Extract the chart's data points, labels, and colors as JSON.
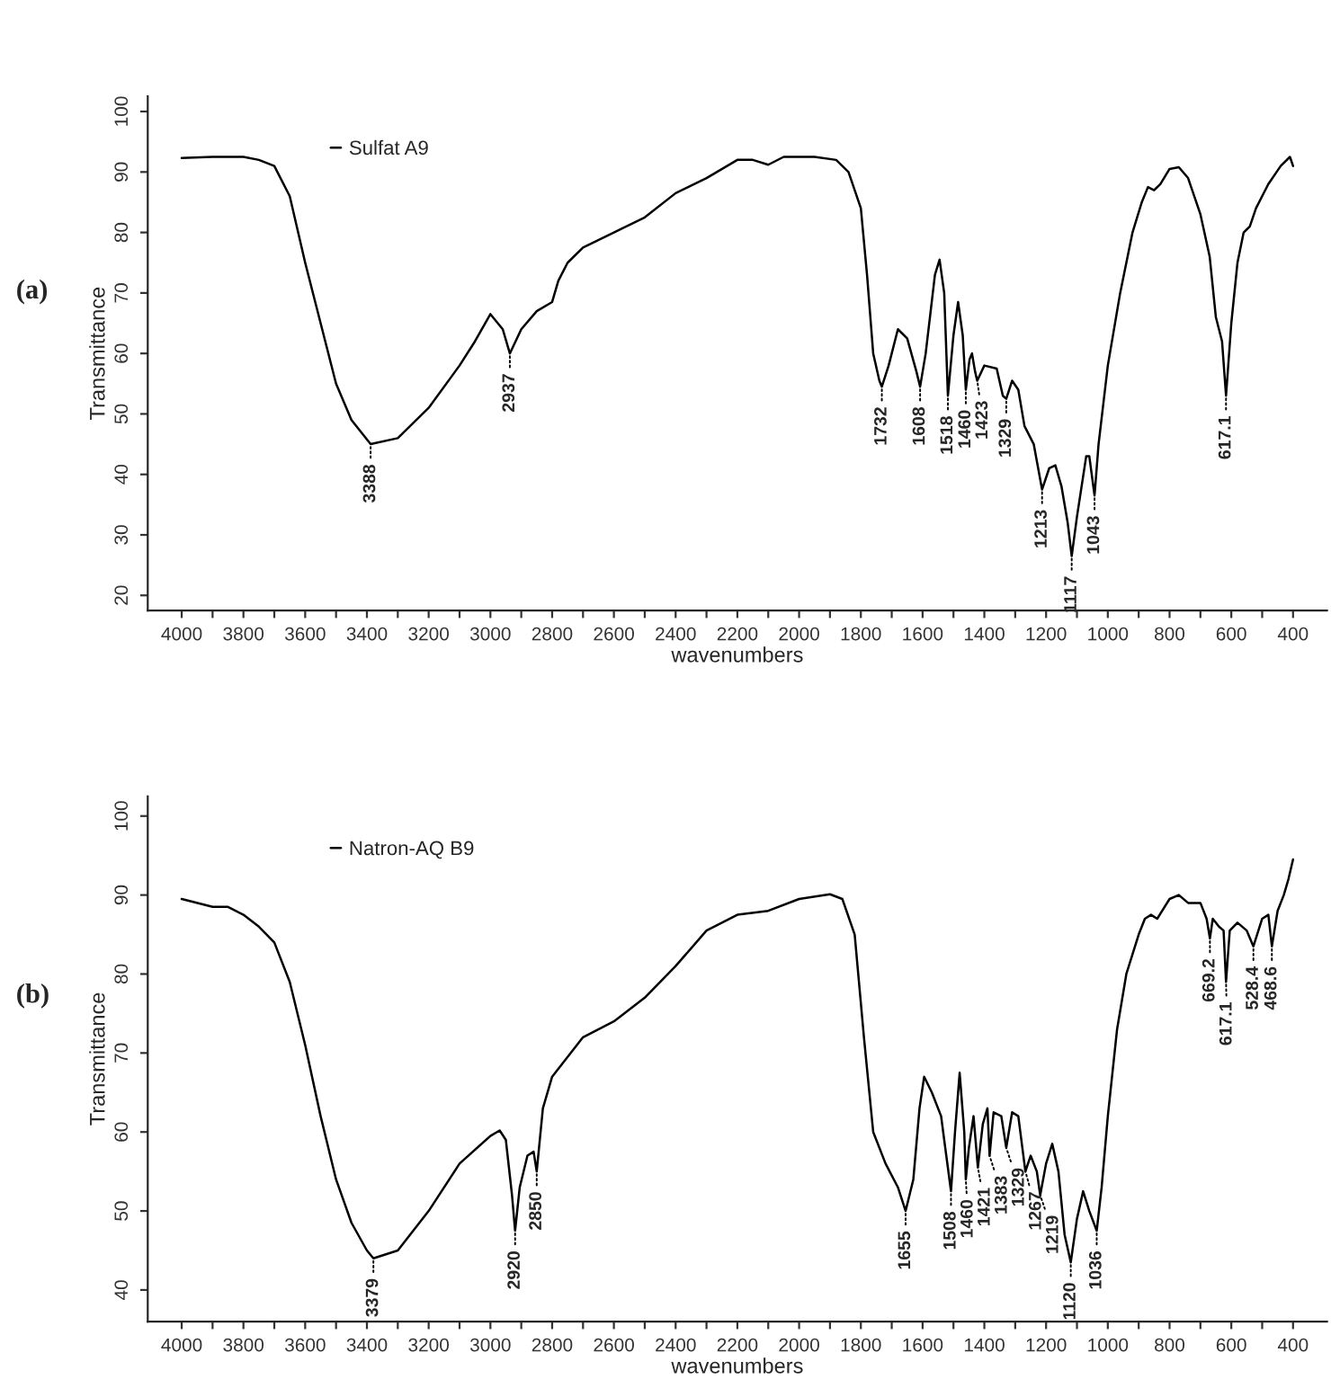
{
  "chart_data": [
    {
      "type": "line",
      "xlabel": "wavenumbers",
      "ylabel": "Transmittance",
      "xlim": [
        4110,
        290
      ],
      "ylim": [
        17.5,
        102.5
      ],
      "xticks": [
        4000,
        {
          "value": 3900,
          "label": null
        },
        3800,
        {
          "value": 3700,
          "label": null
        },
        3600,
        {
          "value": 3500,
          "label": null
        },
        3400,
        {
          "value": 3300,
          "label": null
        },
        3200,
        {
          "value": 3100,
          "label": null
        },
        3000,
        {
          "value": 2900,
          "label": null
        },
        2800,
        {
          "value": 2700,
          "label": null
        },
        2600,
        {
          "value": 2500,
          "label": null
        },
        2400,
        {
          "value": 2300,
          "label": null
        },
        2200,
        {
          "value": 2100,
          "label": null
        },
        2000,
        {
          "value": 1900,
          "label": null
        },
        1800,
        {
          "value": 1700,
          "label": null
        },
        1600,
        {
          "value": 1500,
          "label": null
        },
        1400,
        {
          "value": 1300,
          "label": null
        },
        1200,
        {
          "value": 1100,
          "label": null
        },
        1000,
        {
          "value": 900,
          "label": null
        },
        800,
        {
          "value": 700,
          "label": null
        },
        600,
        {
          "value": 500,
          "label": null
        },
        400
      ],
      "yticks": [
        20,
        30,
        40,
        50,
        60,
        70,
        80,
        90,
        100
      ],
      "grid": false,
      "legend": "top left",
      "marker": "none",
      "line_style": "solid",
      "series": [
        {
          "name": "Sulfat A9",
          "color": "#000000",
          "x": [
            4000,
            3900,
            3800,
            3750,
            3700,
            3650,
            3600,
            3550,
            3500,
            3450,
            3388,
            3300,
            3200,
            3100,
            3050,
            3000,
            2960,
            2937,
            2900,
            2850,
            2800,
            2780,
            2750,
            2700,
            2600,
            2500,
            2400,
            2300,
            2200,
            2150,
            2100,
            2050,
            1950,
            1880,
            1840,
            1800,
            1780,
            1760,
            1740,
            1732,
            1710,
            1680,
            1650,
            1620,
            1608,
            1590,
            1560,
            1545,
            1530,
            1518,
            1500,
            1485,
            1470,
            1460,
            1448,
            1440,
            1430,
            1423,
            1400,
            1360,
            1340,
            1329,
            1310,
            1290,
            1270,
            1240,
            1213,
            1190,
            1170,
            1150,
            1130,
            1117,
            1100,
            1070,
            1060,
            1043,
            1030,
            1000,
            960,
            920,
            890,
            870,
            850,
            830,
            800,
            770,
            740,
            700,
            670,
            650,
            630,
            617.1,
            600,
            580,
            560,
            540,
            520,
            480,
            440,
            410,
            400
          ],
          "values": [
            92.3,
            92.5,
            92.5,
            92,
            91,
            86,
            75,
            65,
            55,
            49,
            45,
            46,
            51,
            58,
            62,
            66.5,
            64,
            60,
            64,
            67,
            68.5,
            72,
            75,
            77.5,
            80,
            82.5,
            86.5,
            89,
            92,
            92,
            91.2,
            92.5,
            92.5,
            92,
            90,
            84,
            73,
            60,
            55.5,
            54.5,
            58,
            64,
            62.5,
            57,
            54.5,
            60,
            73,
            75.5,
            70,
            53,
            63,
            68.5,
            63,
            54,
            59,
            60,
            57,
            55.5,
            58,
            57.5,
            53,
            52.5,
            55.5,
            54,
            48,
            45,
            37.5,
            41,
            41.5,
            38,
            32,
            26.5,
            33,
            43,
            43,
            36.5,
            45,
            58,
            70,
            80,
            85,
            87.5,
            87,
            88,
            90.5,
            90.8,
            89,
            83,
            76,
            66,
            62,
            53,
            65,
            75,
            80,
            81,
            84,
            88,
            91,
            92.5,
            91
          ]
        }
      ],
      "annotations": [
        "(a)",
        {
          "text": "3388",
          "x": 3388,
          "y": 45
        },
        {
          "text": "2937",
          "x": 2937,
          "y": 60
        },
        {
          "text": "1732",
          "x": 1732,
          "y": 54.5
        },
        {
          "text": "1608",
          "x": 1608,
          "y": 54.5
        },
        {
          "text": "1518",
          "x": 1518,
          "y": 53
        },
        {
          "text": "1460",
          "x": 1460,
          "y": 54
        },
        {
          "text": "1423",
          "x": 1423,
          "y": 55.5
        },
        {
          "text": "1329",
          "x": 1329,
          "y": 52.5
        },
        {
          "text": "1213",
          "x": 1213,
          "y": 37.5
        },
        {
          "text": "1117",
          "x": 1117,
          "y": 26.5
        },
        {
          "text": "1043",
          "x": 1043,
          "y": 36.5
        },
        {
          "text": "617.1",
          "x": 617.1,
          "y": 53
        }
      ]
    },
    {
      "type": "line",
      "xlabel": "wavenumbers",
      "ylabel": "Transmittance",
      "xlim": [
        4110,
        290
      ],
      "ylim": [
        36,
        102.5
      ],
      "xticks": [
        4000,
        {
          "value": 3900,
          "label": null
        },
        3800,
        {
          "value": 3700,
          "label": null
        },
        3600,
        {
          "value": 3500,
          "label": null
        },
        3400,
        {
          "value": 3300,
          "label": null
        },
        3200,
        {
          "value": 3100,
          "label": null
        },
        3000,
        {
          "value": 2900,
          "label": null
        },
        2800,
        {
          "value": 2700,
          "label": null
        },
        2600,
        {
          "value": 2500,
          "label": null
        },
        2400,
        {
          "value": 2300,
          "label": null
        },
        2200,
        {
          "value": 2100,
          "label": null
        },
        2000,
        {
          "value": 1900,
          "label": null
        },
        1800,
        {
          "value": 1700,
          "label": null
        },
        1600,
        {
          "value": 1500,
          "label": null
        },
        1400,
        {
          "value": 1300,
          "label": null
        },
        1200,
        {
          "value": 1100,
          "label": null
        },
        1000,
        {
          "value": 900,
          "label": null
        },
        800,
        {
          "value": 700,
          "label": null
        },
        600,
        {
          "value": 500,
          "label": null
        },
        400
      ],
      "yticks": [
        40,
        50,
        60,
        70,
        80,
        90,
        100
      ],
      "grid": false,
      "legend": "top left",
      "marker": "none",
      "line_style": "solid",
      "series": [
        {
          "name": "Natron-AQ B9",
          "color": "#000000",
          "x": [
            4000,
            3900,
            3850,
            3800,
            3750,
            3700,
            3650,
            3600,
            3550,
            3500,
            3450,
            3400,
            3379,
            3300,
            3200,
            3100,
            3000,
            2970,
            2950,
            2930,
            2920,
            2905,
            2880,
            2860,
            2850,
            2830,
            2800,
            2700,
            2600,
            2500,
            2400,
            2300,
            2200,
            2100,
            2000,
            1900,
            1860,
            1820,
            1790,
            1760,
            1720,
            1680,
            1655,
            1630,
            1610,
            1595,
            1570,
            1540,
            1530,
            1508,
            1495,
            1480,
            1465,
            1460,
            1450,
            1435,
            1421,
            1405,
            1390,
            1383,
            1370,
            1345,
            1329,
            1310,
            1290,
            1267,
            1250,
            1230,
            1219,
            1200,
            1180,
            1160,
            1140,
            1120,
            1100,
            1080,
            1060,
            1036,
            1020,
            1000,
            970,
            940,
            900,
            880,
            860,
            840,
            800,
            770,
            740,
            700,
            680,
            669.2,
            660,
            640,
            625,
            617.1,
            605,
            580,
            550,
            528.4,
            500,
            480,
            468.6,
            450,
            430,
            415,
            400
          ],
          "values": [
            89.5,
            88.5,
            88.5,
            87.5,
            86,
            84,
            79,
            71,
            62,
            54,
            48.5,
            45,
            44,
            45,
            50,
            56,
            59.5,
            60.2,
            59,
            52,
            47.5,
            53,
            57,
            57.5,
            55,
            63,
            67,
            72,
            74,
            77,
            81,
            85.5,
            87.5,
            88,
            89.5,
            90.1,
            89.5,
            85,
            72,
            60,
            56,
            53,
            50,
            54,
            63,
            67,
            65,
            62,
            59,
            52.5,
            60,
            67.5,
            60,
            54,
            58,
            62,
            55.5,
            61,
            63,
            57,
            62.5,
            62,
            58,
            62.5,
            62,
            55,
            57,
            55,
            52,
            56,
            58.5,
            55,
            47,
            43.5,
            49,
            52.5,
            50,
            47.5,
            53,
            62,
            73,
            80,
            85,
            87,
            87.5,
            87,
            89.5,
            90,
            89,
            89,
            87,
            84.5,
            87,
            86,
            85.5,
            79,
            85.5,
            86.5,
            85.5,
            83.5,
            87,
            87.5,
            83.5,
            88,
            90,
            92,
            94.5
          ]
        }
      ],
      "annotations": [
        "(b)",
        {
          "text": "3379",
          "x": 3379,
          "y": 44
        },
        {
          "text": "2920",
          "x": 2920,
          "y": 47.5
        },
        {
          "text": "2850",
          "x": 2850,
          "y": 55
        },
        {
          "text": "1655",
          "x": 1655,
          "y": 50
        },
        {
          "text": "1508",
          "x": 1508,
          "y": 52.5
        },
        {
          "text": "1460",
          "x": 1460,
          "y": 54
        },
        {
          "text": "1421",
          "x": 1421,
          "y": 55.5
        },
        {
          "text": "1383",
          "x": 1383,
          "y": 57
        },
        {
          "text": "1329",
          "x": 1329,
          "y": 58
        },
        {
          "text": "1267",
          "x": 1267,
          "y": 55
        },
        {
          "text": "1219",
          "x": 1219,
          "y": 52
        },
        {
          "text": "1120",
          "x": 1120,
          "y": 43.5
        },
        {
          "text": "1036",
          "x": 1036,
          "y": 47.5
        },
        {
          "text": "669.2",
          "x": 669.2,
          "y": 84.5
        },
        {
          "text": "617.1",
          "x": 617.1,
          "y": 79
        },
        {
          "text": "528.4",
          "x": 528.4,
          "y": 83.5
        },
        {
          "text": "468.6",
          "x": 468.6,
          "y": 83.5
        }
      ]
    }
  ]
}
